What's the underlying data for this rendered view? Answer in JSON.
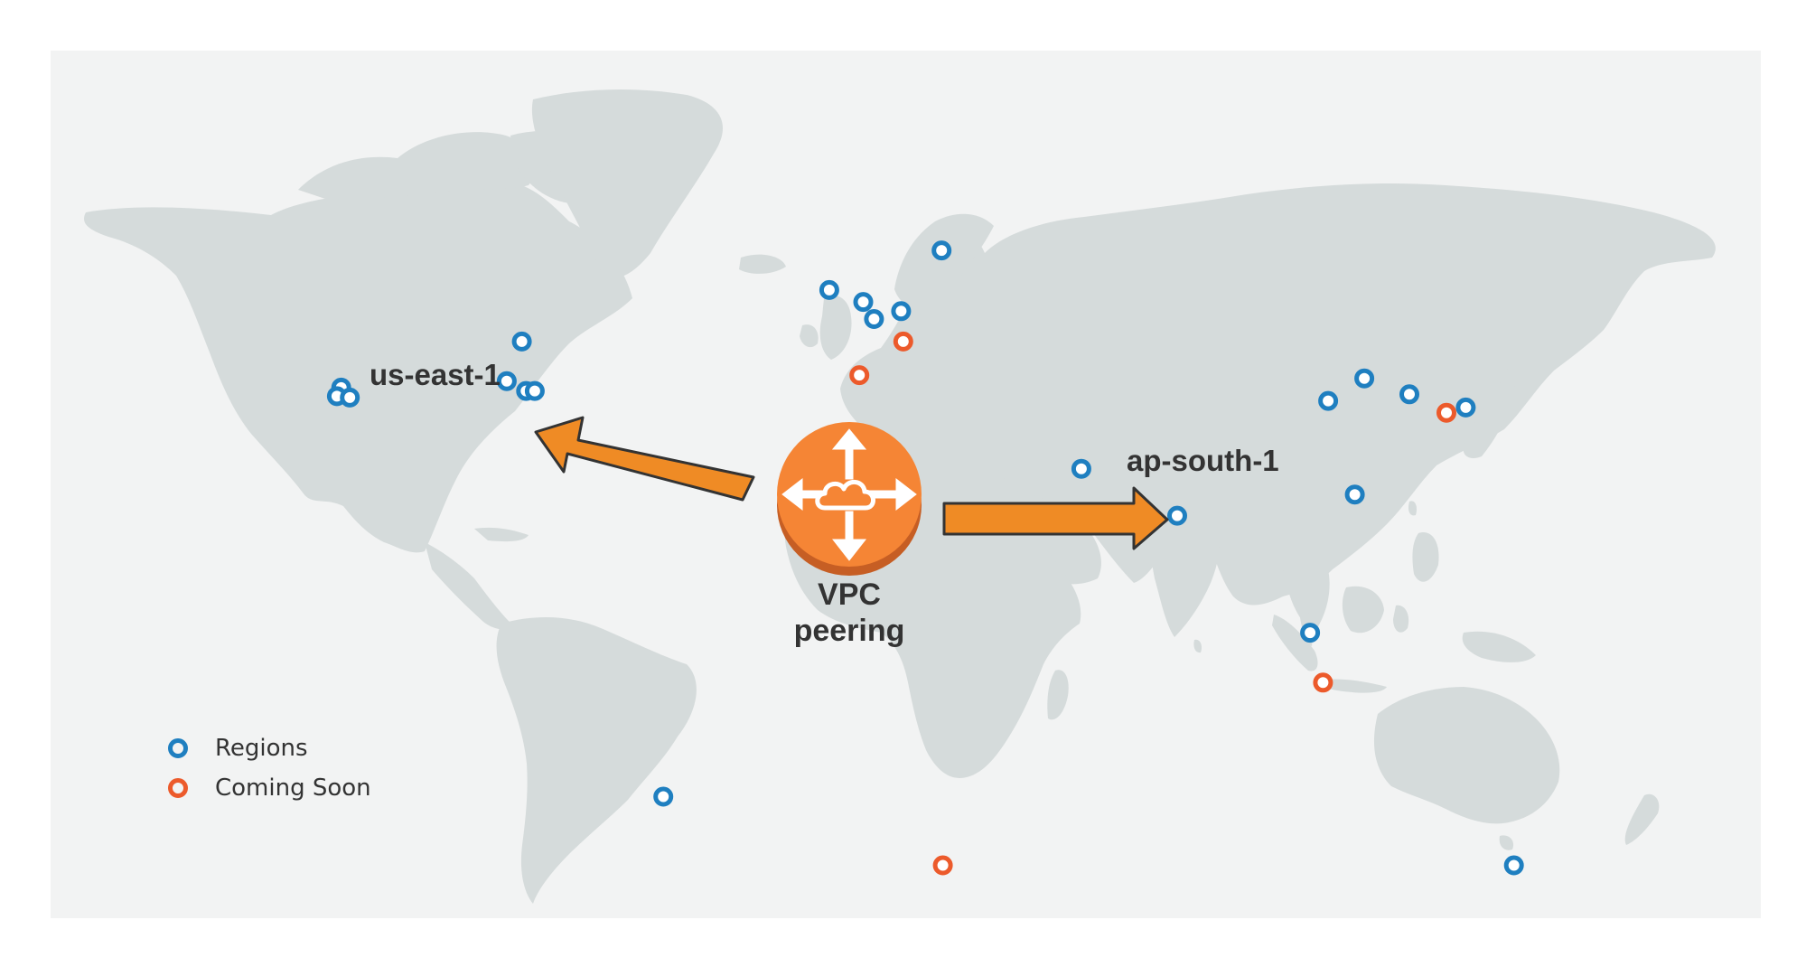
{
  "colors": {
    "panel": "#f2f3f3",
    "land": "#d5dbdb",
    "region": "#1f7fc0",
    "coming_soon": "#ec5a2b",
    "arrow_fill": "#ef8b25",
    "arrow_stroke": "#333333",
    "hub_fill": "#f58535",
    "hub_rim": "#c65e24",
    "text": "#333333"
  },
  "labels": {
    "source_region": "us-east-1",
    "target_region": "ap-south-1",
    "hub_line1": "VPC",
    "hub_line2": "peering"
  },
  "legend": {
    "items": [
      {
        "label": "Regions",
        "status": "region"
      },
      {
        "label": "Coming Soon",
        "status": "coming_soon"
      }
    ]
  },
  "icons": {
    "hub": "vpc-peering-router-icon",
    "marker": "ring-marker-icon"
  },
  "markers": [
    {
      "lon": -121.5,
      "lat": 38.5,
      "status": "region"
    },
    {
      "lon": -122.5,
      "lat": 37.2,
      "status": "region"
    },
    {
      "lon": -119.5,
      "lat": 37.0,
      "status": "region"
    },
    {
      "lon": -79.5,
      "lat": 45.5,
      "status": "region"
    },
    {
      "lon": -83.0,
      "lat": 39.5,
      "status": "region"
    },
    {
      "lon": -78.5,
      "lat": 38.0,
      "status": "region"
    },
    {
      "lon": -76.5,
      "lat": 38.0,
      "status": "region"
    },
    {
      "lon": -46.6,
      "lat": -23.5,
      "status": "region"
    },
    {
      "lon": -8.0,
      "lat": 53.3,
      "status": "region"
    },
    {
      "lon": -0.1,
      "lat": 51.5,
      "status": "region"
    },
    {
      "lon": 2.4,
      "lat": 48.9,
      "status": "region"
    },
    {
      "lon": 8.7,
      "lat": 50.1,
      "status": "region"
    },
    {
      "lon": 18.1,
      "lat": 59.3,
      "status": "region"
    },
    {
      "lon": 50.6,
      "lat": 26.2,
      "status": "region"
    },
    {
      "lon": 72.9,
      "lat": 19.1,
      "status": "region"
    },
    {
      "lon": 116.4,
      "lat": 39.9,
      "status": "region"
    },
    {
      "lon": 108.0,
      "lat": 36.5,
      "status": "region"
    },
    {
      "lon": 126.9,
      "lat": 37.5,
      "status": "region"
    },
    {
      "lon": 140.0,
      "lat": 35.5,
      "status": "region"
    },
    {
      "lon": 114.2,
      "lat": 22.3,
      "status": "region"
    },
    {
      "lon": 103.8,
      "lat": 1.35,
      "status": "region"
    },
    {
      "lon": 151.2,
      "lat": -33.9,
      "status": "region"
    },
    {
      "lon": 9.2,
      "lat": 45.5,
      "status": "coming_soon"
    },
    {
      "lon": -1.0,
      "lat": 40.4,
      "status": "coming_soon"
    },
    {
      "lon": 18.4,
      "lat": -33.9,
      "status": "coming_soon"
    },
    {
      "lon": 106.8,
      "lat": -6.2,
      "status": "coming_soon"
    },
    {
      "lon": 135.5,
      "lat": 34.7,
      "status": "coming_soon"
    }
  ]
}
